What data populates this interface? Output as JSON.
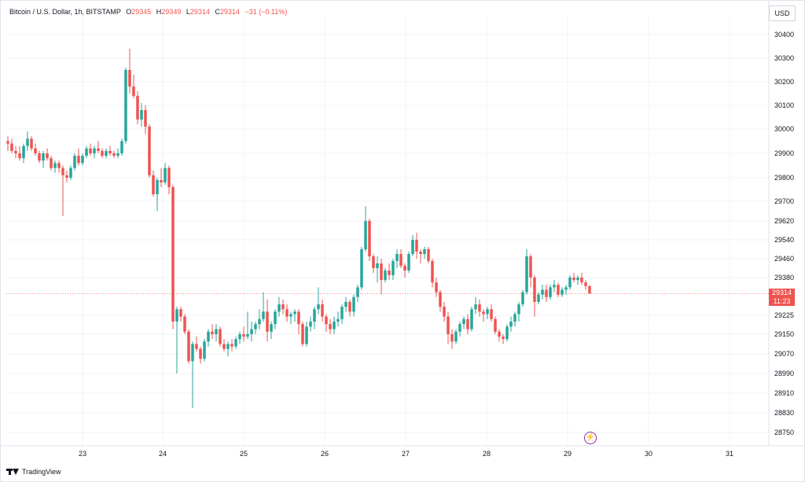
{
  "legend": {
    "symbol": "Bitcoin / U.S. Dollar, 1h, BITSTAMP",
    "o_label": "O",
    "o_value": "29345",
    "h_label": "H",
    "h_value": "29349",
    "l_label": "L",
    "l_value": "29314",
    "c_label": "C",
    "c_value": "29314",
    "change": "−31 (−0.11%)"
  },
  "currency": "USD",
  "last_price": {
    "price": "29314",
    "countdown": "11:23"
  },
  "footer": {
    "brand": "TradingView"
  },
  "colors": {
    "up": "#26a69a",
    "down": "#ef5350",
    "grid": "#f0f3fa",
    "axis_text": "#131722",
    "last_line": "#ef5350"
  },
  "icons": {
    "lightning": "lightning-icon",
    "logo": "tradingview-logo-icon"
  },
  "chart_data": {
    "type": "candlestick",
    "title": "Bitcoin / U.S. Dollar, 1h, BITSTAMP",
    "x_ticks": [
      "23",
      "24",
      "25",
      "26",
      "27",
      "28",
      "29",
      "30",
      "31"
    ],
    "y_ticks": [
      30400,
      30300,
      30200,
      30100,
      30000,
      29900,
      29800,
      29700,
      29620,
      29540,
      29460,
      29380,
      29225,
      29150,
      29070,
      28990,
      28910,
      28830,
      28750
    ],
    "y_tick_labels": [
      "30400",
      "30300",
      "30200",
      "30100",
      "30000",
      "29900",
      "29800",
      "29700",
      "29620",
      "29540",
      "29460",
      "29380",
      "29225",
      "29150",
      "29070",
      "28990",
      "28910",
      "28830",
      "28750"
    ],
    "last_price": 29314,
    "candles": [
      [
        29950,
        29970,
        29910,
        29940
      ],
      [
        29940,
        29960,
        29900,
        29910
      ],
      [
        29910,
        29930,
        29880,
        29900
      ],
      [
        29900,
        29930,
        29870,
        29880
      ],
      [
        29880,
        29940,
        29860,
        29930
      ],
      [
        29930,
        29990,
        29910,
        29960
      ],
      [
        29960,
        29970,
        29910,
        29920
      ],
      [
        29920,
        29940,
        29890,
        29900
      ],
      [
        29900,
        29910,
        29860,
        29870
      ],
      [
        29870,
        29910,
        29840,
        29900
      ],
      [
        29900,
        29920,
        29870,
        29880
      ],
      [
        29880,
        29890,
        29830,
        29840
      ],
      [
        29840,
        29870,
        29820,
        29860
      ],
      [
        29860,
        29870,
        29820,
        29840
      ],
      [
        29840,
        29850,
        29640,
        29810
      ],
      [
        29810,
        29830,
        29780,
        29800
      ],
      [
        29800,
        29850,
        29790,
        29840
      ],
      [
        29840,
        29900,
        29830,
        29890
      ],
      [
        29890,
        29920,
        29850,
        29860
      ],
      [
        29860,
        29900,
        29850,
        29890
      ],
      [
        29890,
        29930,
        29880,
        29920
      ],
      [
        29920,
        29940,
        29890,
        29900
      ],
      [
        29900,
        29930,
        29880,
        29920
      ],
      [
        29920,
        29950,
        29900,
        29910
      ],
      [
        29910,
        29920,
        29880,
        29890
      ],
      [
        29890,
        29920,
        29880,
        29910
      ],
      [
        29910,
        29930,
        29890,
        29900
      ],
      [
        29900,
        29910,
        29880,
        29890
      ],
      [
        29890,
        29920,
        29880,
        29900
      ],
      [
        29900,
        29960,
        29890,
        29950
      ],
      [
        29950,
        30260,
        29940,
        30250
      ],
      [
        30250,
        30340,
        30150,
        30180
      ],
      [
        30180,
        30230,
        30130,
        30140
      ],
      [
        30140,
        30160,
        30020,
        30040
      ],
      [
        30040,
        30110,
        30010,
        30080
      ],
      [
        30080,
        30100,
        29980,
        30010
      ],
      [
        30010,
        30020,
        29800,
        29810
      ],
      [
        29810,
        29830,
        29720,
        29730
      ],
      [
        29730,
        29800,
        29660,
        29790
      ],
      [
        29790,
        29840,
        29760,
        29780
      ],
      [
        29780,
        29860,
        29770,
        29840
      ],
      [
        29840,
        29850,
        29730,
        29760
      ],
      [
        29760,
        29770,
        29170,
        29200
      ],
      [
        29200,
        29260,
        28990,
        29250
      ],
      [
        29250,
        29260,
        29200,
        29220
      ],
      [
        29220,
        29230,
        29150,
        29160
      ],
      [
        29160,
        29170,
        29030,
        29040
      ],
      [
        29040,
        29120,
        28850,
        29110
      ],
      [
        29110,
        29140,
        29080,
        29090
      ],
      [
        29090,
        29100,
        29030,
        29050
      ],
      [
        29050,
        29130,
        29040,
        29120
      ],
      [
        29120,
        29170,
        29100,
        29160
      ],
      [
        29160,
        29190,
        29130,
        29150
      ],
      [
        29150,
        29190,
        29120,
        29170
      ],
      [
        29170,
        29180,
        29100,
        29110
      ],
      [
        29110,
        29130,
        29080,
        29090
      ],
      [
        29090,
        29120,
        29060,
        29110
      ],
      [
        29110,
        29130,
        29080,
        29100
      ],
      [
        29100,
        29140,
        29090,
        29130
      ],
      [
        29130,
        29160,
        29110,
        29150
      ],
      [
        29150,
        29180,
        29120,
        29140
      ],
      [
        29140,
        29240,
        29130,
        29150
      ],
      [
        29150,
        29200,
        29120,
        29170
      ],
      [
        29170,
        29200,
        29150,
        29190
      ],
      [
        29190,
        29250,
        29170,
        29210
      ],
      [
        29210,
        29320,
        29200,
        29240
      ],
      [
        29240,
        29290,
        29120,
        29160
      ],
      [
        29160,
        29200,
        29130,
        29190
      ],
      [
        29190,
        29250,
        29170,
        29240
      ],
      [
        29240,
        29300,
        29220,
        29270
      ],
      [
        29270,
        29290,
        29230,
        29250
      ],
      [
        29250,
        29270,
        29200,
        29220
      ],
      [
        29220,
        29240,
        29190,
        29230
      ],
      [
        29230,
        29250,
        29200,
        29240
      ],
      [
        29240,
        29250,
        29150,
        29190
      ],
      [
        29190,
        29200,
        29100,
        29110
      ],
      [
        29110,
        29200,
        29100,
        29180
      ],
      [
        29180,
        29220,
        29160,
        29200
      ],
      [
        29200,
        29260,
        29170,
        29250
      ],
      [
        29250,
        29340,
        29230,
        29270
      ],
      [
        29270,
        29290,
        29200,
        29220
      ],
      [
        29220,
        29230,
        29160,
        29190
      ],
      [
        29190,
        29210,
        29150,
        29170
      ],
      [
        29170,
        29220,
        29150,
        29200
      ],
      [
        29200,
        29240,
        29180,
        29210
      ],
      [
        29210,
        29270,
        29190,
        29260
      ],
      [
        29260,
        29300,
        29240,
        29280
      ],
      [
        29280,
        29290,
        29220,
        29240
      ],
      [
        29240,
        29310,
        29220,
        29300
      ],
      [
        29300,
        29350,
        29280,
        29340
      ],
      [
        29340,
        29510,
        29330,
        29500
      ],
      [
        29500,
        29680,
        29490,
        29620
      ],
      [
        29620,
        29630,
        29450,
        29470
      ],
      [
        29470,
        29480,
        29400,
        29420
      ],
      [
        29420,
        29470,
        29360,
        29440
      ],
      [
        29440,
        29460,
        29310,
        29370
      ],
      [
        29370,
        29420,
        29360,
        29410
      ],
      [
        29410,
        29440,
        29370,
        29390
      ],
      [
        29390,
        29460,
        29370,
        29450
      ],
      [
        29450,
        29500,
        29420,
        29480
      ],
      [
        29480,
        29500,
        29420,
        29430
      ],
      [
        29430,
        29440,
        29380,
        29410
      ],
      [
        29410,
        29490,
        29400,
        29480
      ],
      [
        29480,
        29560,
        29470,
        29540
      ],
      [
        29540,
        29570,
        29460,
        29490
      ],
      [
        29490,
        29500,
        29440,
        29480
      ],
      [
        29480,
        29510,
        29460,
        29500
      ],
      [
        29500,
        29510,
        29440,
        29450
      ],
      [
        29450,
        29460,
        29340,
        29360
      ],
      [
        29360,
        29380,
        29300,
        29320
      ],
      [
        29320,
        29330,
        29240,
        29260
      ],
      [
        29260,
        29280,
        29200,
        29220
      ],
      [
        29220,
        29240,
        29110,
        29150
      ],
      [
        29150,
        29170,
        29090,
        29120
      ],
      [
        29120,
        29170,
        29110,
        29160
      ],
      [
        29160,
        29200,
        29140,
        29190
      ],
      [
        29190,
        29220,
        29170,
        29210
      ],
      [
        29210,
        29230,
        29150,
        29170
      ],
      [
        29170,
        29260,
        29160,
        29250
      ],
      [
        29250,
        29300,
        29230,
        29270
      ],
      [
        29270,
        29290,
        29220,
        29240
      ],
      [
        29240,
        29250,
        29200,
        29230
      ],
      [
        29230,
        29260,
        29210,
        29250
      ],
      [
        29250,
        29270,
        29200,
        29210
      ],
      [
        29210,
        29220,
        29150,
        29160
      ],
      [
        29160,
        29170,
        29120,
        29140
      ],
      [
        29140,
        29150,
        29110,
        29130
      ],
      [
        29130,
        29190,
        29120,
        29180
      ],
      [
        29180,
        29220,
        29160,
        29200
      ],
      [
        29200,
        29240,
        29180,
        29230
      ],
      [
        29230,
        29280,
        29200,
        29270
      ],
      [
        29270,
        29330,
        29260,
        29320
      ],
      [
        29320,
        29500,
        29310,
        29470
      ],
      [
        29470,
        29480,
        29340,
        29380
      ],
      [
        29380,
        29390,
        29220,
        29280
      ],
      [
        29280,
        29320,
        29270,
        29310
      ],
      [
        29310,
        29350,
        29290,
        29330
      ],
      [
        29330,
        29350,
        29280,
        29300
      ],
      [
        29300,
        29350,
        29290,
        29340
      ],
      [
        29340,
        29370,
        29320,
        29350
      ],
      [
        29350,
        29360,
        29300,
        29310
      ],
      [
        29310,
        29340,
        29300,
        29330
      ],
      [
        29330,
        29350,
        29310,
        29340
      ],
      [
        29340,
        29390,
        29330,
        29380
      ],
      [
        29380,
        29400,
        29360,
        29370
      ],
      [
        29370,
        29390,
        29350,
        29380
      ],
      [
        29380,
        29400,
        29350,
        29360
      ],
      [
        29360,
        29370,
        29330,
        29345
      ],
      [
        29345,
        29349,
        29314,
        29314
      ]
    ]
  }
}
